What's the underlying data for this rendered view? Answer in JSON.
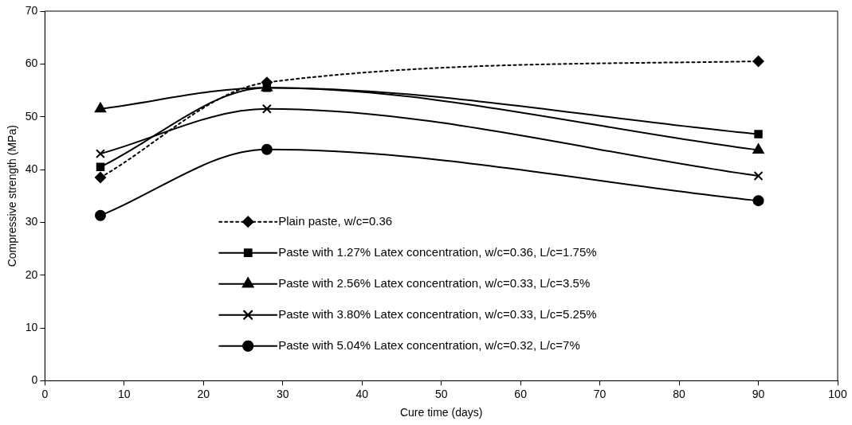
{
  "chart_data": {
    "type": "line",
    "xlabel": "Cure time (days)",
    "ylabel": "Compressive strength (MPa)",
    "x": [
      7,
      28,
      90
    ],
    "xlim": [
      0,
      100
    ],
    "xticks": [
      0,
      10,
      20,
      30,
      40,
      50,
      60,
      70,
      80,
      90,
      100
    ],
    "ylim": [
      0,
      70
    ],
    "yticks": [
      0,
      10,
      20,
      30,
      40,
      50,
      60,
      70
    ],
    "grid": false,
    "legend": "bottom",
    "series": [
      {
        "name": "Plain paste, w/c=0.36",
        "color": "#000000",
        "values": [
          38.5,
          56.5,
          60.5
        ],
        "marker": "diamond",
        "line_style": "dotted"
      },
      {
        "name": "Paste with 1.27% Latex concentration, w/c=0.36, L/c=1.75%",
        "color": "#000000",
        "values": [
          40.5,
          55.5,
          46.7
        ],
        "marker": "square",
        "line_style": "solid"
      },
      {
        "name": "Paste with 2.56% Latex concentration, w/c=0.33, L/c=3.5%",
        "color": "#000000",
        "values": [
          51.5,
          55.5,
          43.7
        ],
        "marker": "triangle",
        "line_style": "solid"
      },
      {
        "name": "Paste with 3.80% Latex concentration, w/c=0.33, L/c=5.25%",
        "color": "#000000",
        "values": [
          43,
          51.5,
          38.8
        ],
        "marker": "cross",
        "line_style": "solid"
      },
      {
        "name": "Paste with 5.04% Latex concentration, w/c=0.32, L/c=7%",
        "color": "#000000",
        "values": [
          31.3,
          43.8,
          34.1
        ],
        "marker": "circle",
        "line_style": "solid"
      }
    ]
  }
}
